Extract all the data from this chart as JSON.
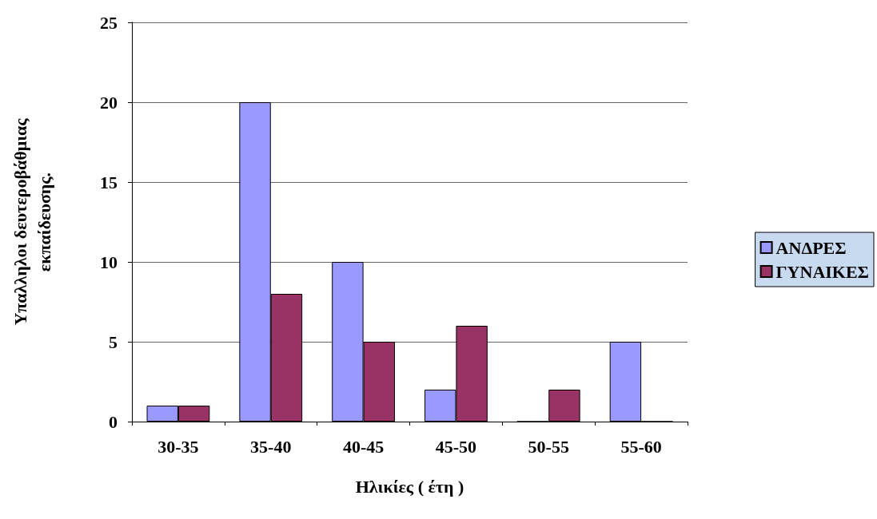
{
  "chart_data": {
    "type": "bar",
    "xlabel": "Ηλικίες ( έτη )",
    "ylabel": "Υπαλληλοι δευτεροβάθμιας\nεκπαίδευσης.",
    "categories": [
      "30-35",
      "35-40",
      "40-45",
      "45-50",
      "50-55",
      "55-60"
    ],
    "series": [
      {
        "name": "ΑΝΔΡΕΣ",
        "color": "#9999ff",
        "values": [
          1,
          20,
          10,
          2,
          0,
          5
        ]
      },
      {
        "name": "ΓΥΝΑΙΚΕΣ",
        "color": "#993366",
        "values": [
          1,
          8,
          5,
          6,
          2,
          0
        ]
      }
    ],
    "ylim": [
      0,
      25
    ],
    "yticks": [
      0,
      5,
      10,
      15,
      20,
      25
    ],
    "grid": "y",
    "legend": "right"
  }
}
